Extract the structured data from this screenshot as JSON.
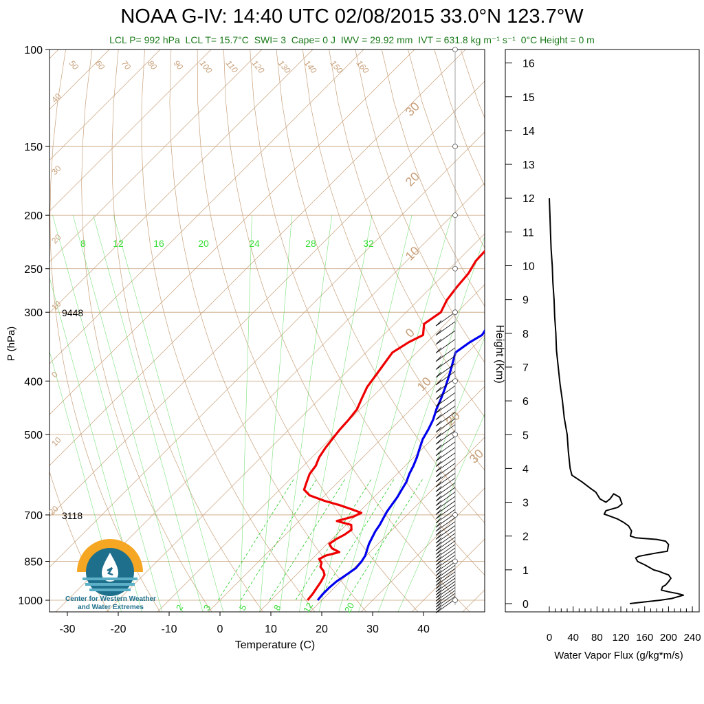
{
  "title": "NOAA G-IV: 14:40 UTC 02/08/2015  33.0°N 123.7°W",
  "subtitle": "LCL P= 992 hPa  LCL T= 15.7°C  SWI= 3  Cape= 0 J  IWV = 29.92 mm  IVT = 631.8 kg m⁻¹ s⁻¹  0°C Height = 0 m",
  "logo": {
    "line1": "Center for Western Weather",
    "line2": "and Water Extremes"
  },
  "chart_data": [
    {
      "type": "line",
      "name": "skew-t",
      "xlabel": "Temperature (C)",
      "ylabel": "P (hPa)",
      "x_ticks": [
        "-30",
        "-20",
        "-10",
        "0",
        "10",
        "20",
        "30",
        "40"
      ],
      "y_ticks": [
        "100",
        "150",
        "200",
        "250",
        "300",
        "400",
        "500",
        "700",
        "850",
        "1000"
      ],
      "height_labels": [
        {
          "p": 300,
          "text": "9448"
        },
        {
          "p": 700,
          "text": "3118"
        }
      ],
      "dry_adiabat_labels": [
        "50",
        "60",
        "70",
        "80",
        "90",
        "100",
        "110",
        "120",
        "130",
        "140",
        "150",
        "160"
      ],
      "isotherm_labels": [
        "40",
        "30",
        "20",
        "10",
        "0",
        "10",
        "20",
        "30",
        "20",
        "10",
        "0",
        "10",
        "20",
        "30"
      ],
      "mixing_ratio_labels_top": [
        "8",
        "12",
        "16",
        "20",
        "24",
        "28",
        "32"
      ],
      "mixing_ratio_labels_bottom": [
        "2",
        "3",
        "5",
        "8",
        "12",
        "20"
      ],
      "colors": {
        "temperature": "#ee0000",
        "dewpoint": "#0000ee",
        "background": "#c8a07a",
        "moist": "#22cc22"
      },
      "series": [
        {
          "name": "temperature",
          "points": [
            [
              200,
              -16.2
            ],
            [
              210,
              -15.6
            ],
            [
              222,
              -15.0
            ],
            [
              230,
              -16.6
            ],
            [
              242,
              -16.4
            ],
            [
              255,
              -15.4
            ],
            [
              270,
              -15.0
            ],
            [
              285,
              -14.4
            ],
            [
              300,
              -13.2
            ],
            [
              315,
              -14.2
            ],
            [
              330,
              -12.2
            ],
            [
              340,
              -13.6
            ],
            [
              355,
              -14.8
            ],
            [
              372,
              -14.2
            ],
            [
              390,
              -13.6
            ],
            [
              410,
              -13.0
            ],
            [
              430,
              -11.8
            ],
            [
              450,
              -10.6
            ],
            [
              470,
              -10.2
            ],
            [
              490,
              -10.0
            ],
            [
              510,
              -9.6
            ],
            [
              530,
              -9.2
            ],
            [
              550,
              -8.6
            ],
            [
              570,
              -7.6
            ],
            [
              590,
              -7.2
            ],
            [
              610,
              -6.2
            ],
            [
              630,
              -5.2
            ],
            [
              645,
              -3.0
            ],
            [
              660,
              1.0
            ],
            [
              672,
              4.8
            ],
            [
              683,
              7.8
            ],
            [
              694,
              10.6
            ],
            [
              705,
              9.8
            ],
            [
              718,
              7.4
            ],
            [
              730,
              11.0
            ],
            [
              745,
              12.0
            ],
            [
              760,
              11.6
            ],
            [
              775,
              10.8
            ],
            [
              790,
              10.4
            ],
            [
              805,
              11.8
            ],
            [
              818,
              14.0
            ],
            [
              830,
              12.0
            ],
            [
              842,
              11.4
            ],
            [
              855,
              12.6
            ],
            [
              870,
              13.2
            ],
            [
              885,
              14.6
            ],
            [
              900,
              15.6
            ],
            [
              925,
              16.2
            ],
            [
              950,
              16.6
            ],
            [
              975,
              17.0
            ],
            [
              1000,
              17.2
            ]
          ]
        },
        {
          "name": "dewpoint",
          "points": [
            [
              200,
              -3.2
            ],
            [
              210,
              -2.6
            ],
            [
              222,
              -2.0
            ],
            [
              230,
              -3.2
            ],
            [
              242,
              -3.0
            ],
            [
              255,
              -2.4
            ],
            [
              270,
              -2.2
            ],
            [
              285,
              -1.4
            ],
            [
              300,
              -0.4
            ],
            [
              315,
              -1.4
            ],
            [
              330,
              -0.6
            ],
            [
              340,
              -1.6
            ],
            [
              355,
              -2.4
            ],
            [
              372,
              -0.8
            ],
            [
              390,
              0.8
            ],
            [
              410,
              2.4
            ],
            [
              430,
              3.8
            ],
            [
              450,
              5.0
            ],
            [
              470,
              6.4
            ],
            [
              490,
              7.4
            ],
            [
              510,
              8.2
            ],
            [
              530,
              9.4
            ],
            [
              550,
              10.6
            ],
            [
              570,
              11.6
            ],
            [
              590,
              12.4
            ],
            [
              610,
              13.4
            ],
            [
              630,
              14.0
            ],
            [
              650,
              14.6
            ],
            [
              670,
              15.0
            ],
            [
              690,
              15.4
            ],
            [
              710,
              16.0
            ],
            [
              730,
              16.6
            ],
            [
              750,
              17.0
            ],
            [
              770,
              17.6
            ],
            [
              790,
              18.2
            ],
            [
              810,
              19.0
            ],
            [
              830,
              19.8
            ],
            [
              850,
              20.2
            ],
            [
              875,
              20.4
            ],
            [
              900,
              19.8
            ],
            [
              925,
              19.2
            ],
            [
              950,
              19.0
            ],
            [
              975,
              19.0
            ],
            [
              1000,
              19.2
            ]
          ]
        }
      ]
    },
    {
      "type": "line",
      "name": "water-vapor-flux",
      "xlabel": "Water Vapor Flux (g/kg*m/s)",
      "ylabel": "Height (Km)",
      "x_ticks": [
        "0",
        "40",
        "80",
        "120",
        "160",
        "200",
        "240"
      ],
      "y_ticks": [
        "0",
        "1",
        "2",
        "3",
        "4",
        "5",
        "6",
        "7",
        "8",
        "9",
        "10",
        "11",
        "12",
        "13",
        "14",
        "15",
        "16"
      ],
      "xlim": [
        0,
        240
      ],
      "ylim": [
        0,
        16
      ],
      "series": [
        {
          "name": "flux",
          "points": [
            [
              0,
              12.0
            ],
            [
              1,
              11.5
            ],
            [
              2,
              11.0
            ],
            [
              3,
              10.5
            ],
            [
              5,
              10.0
            ],
            [
              6,
              9.5
            ],
            [
              8,
              9.0
            ],
            [
              9,
              8.5
            ],
            [
              11,
              8.0
            ],
            [
              12,
              7.5
            ],
            [
              15,
              7.0
            ],
            [
              18,
              6.5
            ],
            [
              22,
              6.0
            ],
            [
              25,
              5.5
            ],
            [
              30,
              5.0
            ],
            [
              32,
              4.5
            ],
            [
              35,
              4.0
            ],
            [
              38,
              3.8
            ],
            [
              55,
              3.6
            ],
            [
              70,
              3.4
            ],
            [
              78,
              3.3
            ],
            [
              85,
              3.1
            ],
            [
              90,
              3.05
            ],
            [
              95,
              3.0
            ],
            [
              102,
              3.1
            ],
            [
              108,
              3.25
            ],
            [
              118,
              3.15
            ],
            [
              122,
              2.95
            ],
            [
              115,
              2.85
            ],
            [
              95,
              2.75
            ],
            [
              92,
              2.65
            ],
            [
              100,
              2.6
            ],
            [
              115,
              2.5
            ],
            [
              125,
              2.4
            ],
            [
              133,
              2.3
            ],
            [
              138,
              2.15
            ],
            [
              136,
              2.0
            ],
            [
              145,
              1.95
            ],
            [
              180,
              1.9
            ],
            [
              195,
              1.85
            ],
            [
              200,
              1.75
            ],
            [
              198,
              1.55
            ],
            [
              180,
              1.5
            ],
            [
              165,
              1.45
            ],
            [
              150,
              1.4
            ],
            [
              145,
              1.35
            ],
            [
              148,
              1.25
            ],
            [
              160,
              1.15
            ],
            [
              170,
              1.05
            ],
            [
              175,
              1.0
            ],
            [
              185,
              0.95
            ],
            [
              192,
              0.9
            ],
            [
              200,
              0.85
            ],
            [
              204,
              0.75
            ],
            [
              200,
              0.65
            ],
            [
              195,
              0.55
            ],
            [
              190,
              0.5
            ],
            [
              188,
              0.4
            ],
            [
              200,
              0.35
            ],
            [
              215,
              0.3
            ],
            [
              225,
              0.25
            ],
            [
              205,
              0.15
            ],
            [
              185,
              0.1
            ],
            [
              160,
              0.05
            ],
            [
              135,
              0.0
            ]
          ]
        }
      ]
    }
  ]
}
